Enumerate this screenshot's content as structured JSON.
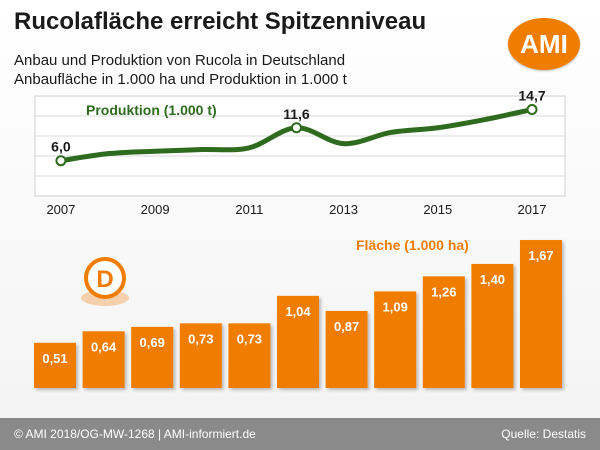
{
  "header": {
    "title": "Rucolafläche erreicht Spitzenniveau",
    "subtitle_1": "Anbau und Produktion von Rucola in Deutschland",
    "subtitle_2": "Anbaufläche in 1.000 ha und Produktion in 1.000 t",
    "logo_text": "AMI"
  },
  "footer": {
    "copyright": "© AMI 2018/OG-MW-1268 | AMI-informiert.de",
    "source": "Quelle: Destatis"
  },
  "colors": {
    "line": "#2e6b1f",
    "bar": "#f07d00",
    "accent_green": "#3a7a22",
    "accent_orange": "#f07d00",
    "footer_bg": "#8a8a8a"
  },
  "marker": {
    "letter": "D",
    "icon": "germany-marker-icon"
  },
  "chart_data": [
    {
      "type": "line",
      "title": "Produktion (1.000 t)",
      "x": [
        2007,
        2008,
        2009,
        2010,
        2011,
        2012,
        2013,
        2014,
        2015,
        2016,
        2017
      ],
      "xticks": [
        "2007",
        "2009",
        "2011",
        "2013",
        "2015",
        "2017"
      ],
      "y": [
        6.0,
        7.2,
        7.6,
        7.9,
        8.2,
        11.6,
        8.9,
        10.8,
        11.6,
        13.0,
        14.7
      ],
      "labeled": [
        {
          "x": 2007,
          "label": "6,0"
        },
        {
          "x": 2012,
          "label": "11,6"
        },
        {
          "x": 2017,
          "label": "14,7"
        }
      ],
      "ylim": [
        0,
        17
      ],
      "grid": true,
      "smooth": true
    },
    {
      "type": "bar",
      "title": "Fläche (1.000 ha)",
      "categories": [
        "2007",
        "2008",
        "2009",
        "2010",
        "2011",
        "2012",
        "2013",
        "2014",
        "2015",
        "2016",
        "2017"
      ],
      "values": [
        0.51,
        0.64,
        0.69,
        0.73,
        0.73,
        1.04,
        0.87,
        1.09,
        1.26,
        1.4,
        1.67
      ],
      "labels": [
        "0,51",
        "0,64",
        "0,69",
        "0,73",
        "0,73",
        "1,04",
        "0,87",
        "1,09",
        "1,26",
        "1,40",
        "1,67"
      ]
    }
  ]
}
